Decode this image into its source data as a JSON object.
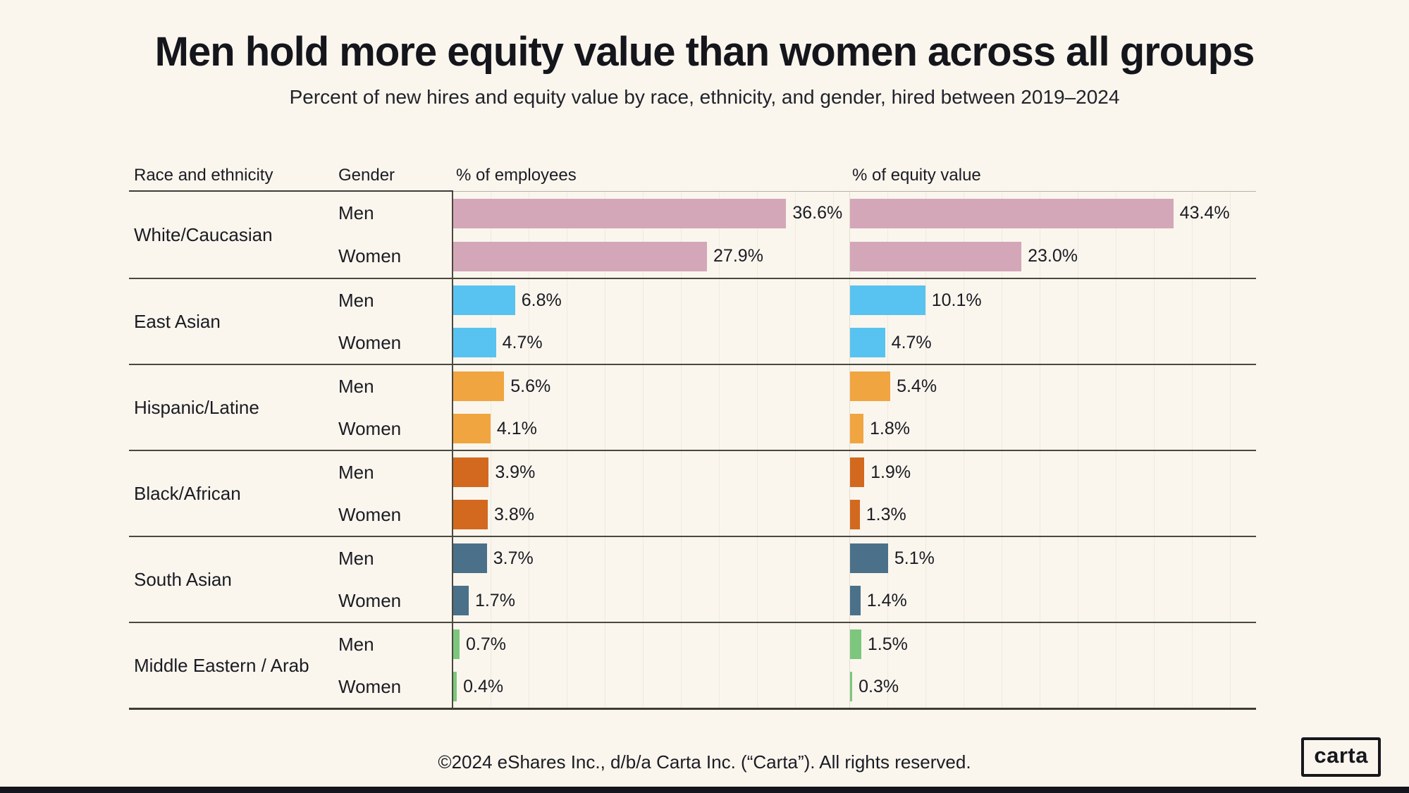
{
  "page": {
    "footer": "©2024 eShares Inc., d/b/a Carta Inc. (“Carta”). All rights reserved.",
    "logo_text": "carta",
    "background_color": "#FAF6EE",
    "accent_dark": "#17171d"
  },
  "chart_data": {
    "type": "bar",
    "orientation": "horizontal",
    "title": "Men hold more equity value than women across all groups",
    "subtitle": "Percent of new hires and equity value by race, ethnicity, and gender, hired between 2019–2024",
    "columns": {
      "race": "Race and ethnicity",
      "gender": "Gender",
      "employees": "% of employees",
      "equity": "% of equity value"
    },
    "unit": "%",
    "axis": {
      "employees_max": 42,
      "equity_max": 54.5,
      "gridlines": true,
      "legend": "none"
    },
    "groups": [
      {
        "race": "White/Caucasian",
        "color": "#D4A7B8",
        "rows": [
          {
            "gender": "Men",
            "employees": {
              "value": 36.6,
              "label": "36.6%"
            },
            "equity": {
              "value": 43.4,
              "label": "43.4%"
            }
          },
          {
            "gender": "Women",
            "employees": {
              "value": 27.9,
              "label": "27.9%"
            },
            "equity": {
              "value": 23.0,
              "label": "23.0%"
            }
          }
        ]
      },
      {
        "race": "East Asian",
        "color": "#58C3F0",
        "rows": [
          {
            "gender": "Men",
            "employees": {
              "value": 6.8,
              "label": "6.8%"
            },
            "equity": {
              "value": 10.1,
              "label": "10.1%"
            }
          },
          {
            "gender": "Women",
            "employees": {
              "value": 4.7,
              "label": "4.7%"
            },
            "equity": {
              "value": 4.7,
              "label": "4.7%"
            }
          }
        ]
      },
      {
        "race": "Hispanic/Latine",
        "color": "#F0A540",
        "rows": [
          {
            "gender": "Men",
            "employees": {
              "value": 5.6,
              "label": "5.6%"
            },
            "equity": {
              "value": 5.4,
              "label": "5.4%"
            }
          },
          {
            "gender": "Women",
            "employees": {
              "value": 4.1,
              "label": "4.1%"
            },
            "equity": {
              "value": 1.8,
              "label": "1.8%"
            }
          }
        ]
      },
      {
        "race": "Black/African",
        "color": "#D2691E",
        "rows": [
          {
            "gender": "Men",
            "employees": {
              "value": 3.9,
              "label": "3.9%"
            },
            "equity": {
              "value": 1.9,
              "label": "1.9%"
            }
          },
          {
            "gender": "Women",
            "employees": {
              "value": 3.8,
              "label": "3.8%"
            },
            "equity": {
              "value": 1.3,
              "label": "1.3%"
            }
          }
        ]
      },
      {
        "race": "South Asian",
        "color": "#4A7189",
        "rows": [
          {
            "gender": "Men",
            "employees": {
              "value": 3.7,
              "label": "3.7%"
            },
            "equity": {
              "value": 5.1,
              "label": "5.1%"
            }
          },
          {
            "gender": "Women",
            "employees": {
              "value": 1.7,
              "label": "1.7%"
            },
            "equity": {
              "value": 1.4,
              "label": "1.4%"
            }
          }
        ]
      },
      {
        "race": "Middle Eastern / Arab",
        "color": "#7CC77D",
        "rows": [
          {
            "gender": "Men",
            "employees": {
              "value": 0.7,
              "label": "0.7%"
            },
            "equity": {
              "value": 1.5,
              "label": "1.5%"
            }
          },
          {
            "gender": "Women",
            "employees": {
              "value": 0.4,
              "label": "0.4%"
            },
            "equity": {
              "value": 0.3,
              "label": "0.3%"
            }
          }
        ]
      }
    ]
  }
}
